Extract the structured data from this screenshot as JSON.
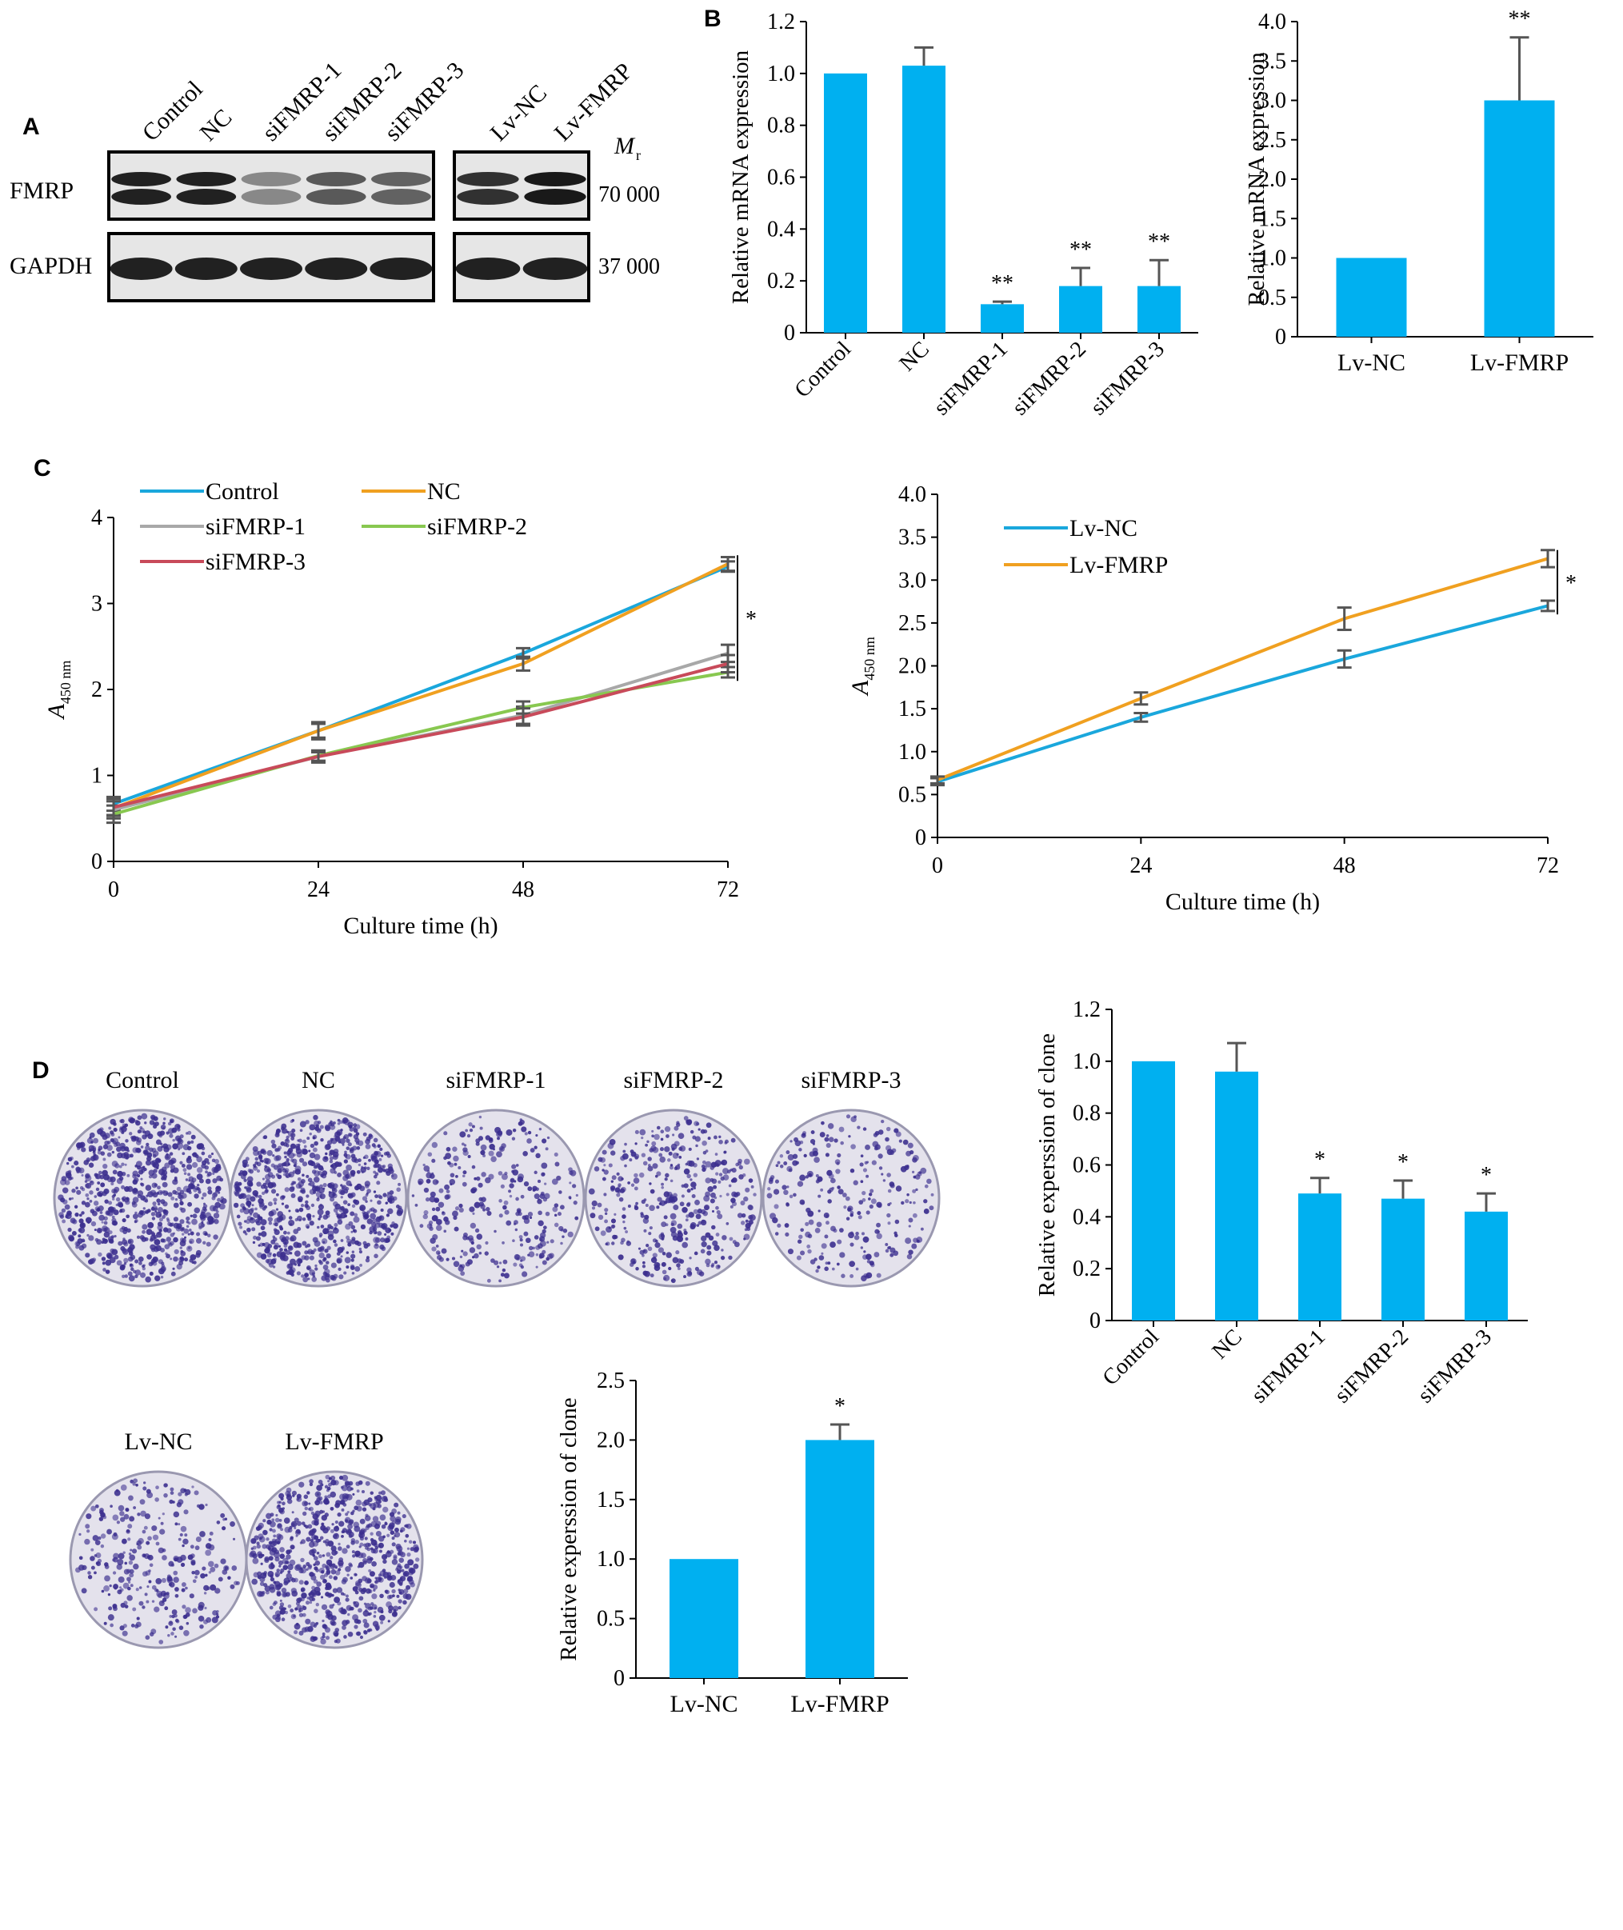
{
  "panel_letters": {
    "A": "A",
    "B": "B",
    "C": "C",
    "D": "D"
  },
  "colors": {
    "bar": "#00b0f0",
    "axis": "#000000",
    "error": "#555555",
    "blot_bg": "#e6e6e6",
    "colony": "#3c2f8f"
  },
  "panel_a": {
    "lane_labels": [
      "Control",
      "NC",
      "siFMRP-1",
      "siFMRP-2",
      "siFMRP-3",
      "Lv-NC",
      "Lv-FMRP"
    ],
    "row_labels": [
      "FMRP",
      "GAPDH"
    ],
    "mr_label": "M",
    "mr_sub": "r",
    "mw_labels": [
      "70 000",
      "37 000"
    ],
    "fmrp_intensity": [
      0.9,
      0.9,
      0.25,
      0.55,
      0.5,
      0.8,
      0.95
    ],
    "gapdh_intensity": [
      0.9,
      0.9,
      0.9,
      0.9,
      0.9,
      0.9,
      0.9
    ]
  },
  "chart_data": [
    {
      "id": "B1",
      "type": "bar",
      "categories": [
        "Control",
        "NC",
        "siFMRP-1",
        "siFMRP-2",
        "siFMRP-3"
      ],
      "values": [
        1.0,
        1.03,
        0.11,
        0.18,
        0.18
      ],
      "errors": [
        0,
        0.07,
        0.01,
        0.07,
        0.1
      ],
      "significance": [
        "",
        "",
        "**",
        "**",
        "**"
      ],
      "ylabel": "Relative mRNA expression",
      "ylim": [
        0,
        1.2
      ],
      "yticks": [
        "0",
        "0.2",
        "0.4",
        "0.6",
        "0.8",
        "1.0",
        "1.2"
      ]
    },
    {
      "id": "B2",
      "type": "bar",
      "categories": [
        "Lv-NC",
        "Lv-FMRP"
      ],
      "values": [
        1.0,
        3.0
      ],
      "errors": [
        0,
        0.8
      ],
      "significance": [
        "",
        "**"
      ],
      "ylabel": "Relative mRNA expression",
      "ylim": [
        0,
        4.0
      ],
      "yticks": [
        "0",
        "0.5",
        "1.0",
        "1.5",
        "2.0",
        "2.5",
        "3.0",
        "3.5",
        "4.0"
      ]
    },
    {
      "id": "C1",
      "type": "line",
      "x": [
        0,
        24,
        48,
        72
      ],
      "xticks": [
        "0",
        "24",
        "48",
        "72"
      ],
      "xlabel": "Culture time (h)",
      "ylabel": "A",
      "ylabel_sub": "450 nm",
      "ylim": [
        0,
        4
      ],
      "yticks": [
        "0",
        "1",
        "2",
        "3",
        "4"
      ],
      "sig_label": "*",
      "series": [
        {
          "name": "Control",
          "color": "#1aa7dc",
          "values": [
            0.67,
            1.52,
            2.42,
            3.43
          ],
          "errors": [
            0.08,
            0.08,
            0.06,
            0.06
          ]
        },
        {
          "name": "NC",
          "color": "#f0a020",
          "values": [
            0.62,
            1.52,
            2.3,
            3.46
          ],
          "errors": [
            0.08,
            0.1,
            0.08,
            0.08
          ]
        },
        {
          "name": "siFMRP-1",
          "color": "#a8a8a8",
          "values": [
            0.6,
            1.22,
            1.7,
            2.42
          ],
          "errors": [
            0.1,
            0.07,
            0.1,
            0.1
          ]
        },
        {
          "name": "siFMRP-2",
          "color": "#88c850",
          "values": [
            0.55,
            1.23,
            1.79,
            2.2
          ],
          "errors": [
            0.1,
            0.06,
            0.07,
            0.06
          ]
        },
        {
          "name": "siFMRP-3",
          "color": "#c84a5a",
          "values": [
            0.63,
            1.22,
            1.68,
            2.3
          ],
          "errors": [
            0.1,
            0.05,
            0.1,
            0.1
          ]
        }
      ]
    },
    {
      "id": "C2",
      "type": "line",
      "x": [
        0,
        24,
        48,
        72
      ],
      "xticks": [
        "0",
        "24",
        "48",
        "72"
      ],
      "xlabel": "Culture time (h)",
      "ylabel": "A",
      "ylabel_sub": "450 nm",
      "ylim": [
        0,
        4.0
      ],
      "yticks": [
        "0",
        "0.5",
        "1.0",
        "1.5",
        "2.0",
        "2.5",
        "3.0",
        "3.5",
        "4.0"
      ],
      "sig_label": "*",
      "series": [
        {
          "name": "Lv-NC",
          "color": "#1aa7dc",
          "values": [
            0.65,
            1.4,
            2.08,
            2.7
          ],
          "errors": [
            0.04,
            0.05,
            0.1,
            0.06
          ]
        },
        {
          "name": "Lv-FMRP",
          "color": "#f0a020",
          "values": [
            0.67,
            1.62,
            2.55,
            3.25
          ],
          "errors": [
            0.04,
            0.07,
            0.13,
            0.1
          ]
        }
      ]
    },
    {
      "id": "D1",
      "type": "bar",
      "categories": [
        "Control",
        "NC",
        "siFMRP-1",
        "siFMRP-2",
        "siFMRP-3"
      ],
      "values": [
        1.0,
        0.96,
        0.49,
        0.47,
        0.42
      ],
      "errors": [
        0,
        0.11,
        0.06,
        0.07,
        0.07
      ],
      "significance": [
        "",
        "",
        "*",
        "*",
        "*"
      ],
      "ylabel": "Relative experssion of clone",
      "ylim": [
        0,
        1.2
      ],
      "yticks": [
        "0",
        "0.2",
        "0.4",
        "0.6",
        "0.8",
        "1.0",
        "1.2"
      ]
    },
    {
      "id": "D2",
      "type": "bar",
      "categories": [
        "Lv-NC",
        "Lv-FMRP"
      ],
      "values": [
        1.0,
        2.0
      ],
      "errors": [
        0,
        0.13
      ],
      "significance": [
        "",
        "*"
      ],
      "ylabel": "Relative experssion of clone",
      "ylim": [
        0,
        2.5
      ],
      "yticks": [
        "0",
        "0.5",
        "1.0",
        "1.5",
        "2.0",
        "2.5"
      ]
    }
  ],
  "panel_d": {
    "dish_labels_top": [
      "Control",
      "NC",
      "siFMRP-1",
      "siFMRP-2",
      "siFMRP-3"
    ],
    "dish_labels_bottom": [
      "Lv-NC",
      "Lv-FMRP"
    ],
    "dish_density_top": [
      0.85,
      0.9,
      0.35,
      0.45,
      0.3
    ],
    "dish_density_bottom": [
      0.35,
      0.85
    ]
  }
}
